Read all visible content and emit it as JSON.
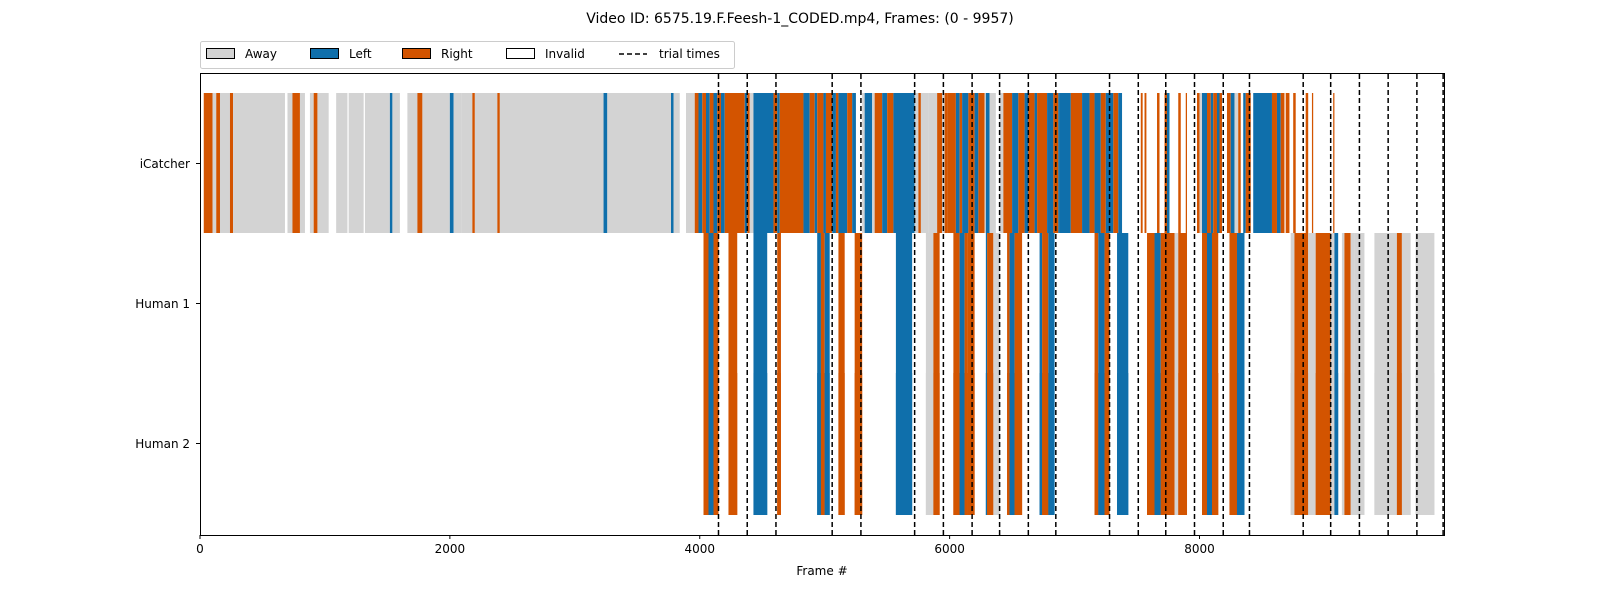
{
  "chart_data": {
    "type": "broken_barh",
    "title": "Video ID: 6575.19.F.Feesh-1_CODED.mp4, Frames: (0 - 9957)",
    "xlabel": "Frame #",
    "ylabel": "",
    "xlim": [
      0,
      9957
    ],
    "xticks": [
      0,
      2000,
      4000,
      6000,
      8000
    ],
    "rows": [
      "iCatcher",
      "Human 1",
      "Human 2"
    ],
    "legend": {
      "placement": "top-left, above plot",
      "entries": [
        {
          "label": "Away",
          "color": "#d3d3d3"
        },
        {
          "label": "Left",
          "color": "#0f6fab"
        },
        {
          "label": "Right",
          "color": "#d35400"
        },
        {
          "label": "Invalid",
          "color": "#ffffff"
        },
        {
          "label": "trial times",
          "style": "dashed"
        }
      ]
    },
    "colors": {
      "Away": "#d3d3d3",
      "Left": "#0f6fab",
      "Right": "#d35400"
    },
    "trial_times": [
      4150,
      4380,
      4610,
      5060,
      5290,
      5720,
      5950,
      6180,
      6400,
      6630,
      6850,
      7280,
      7510,
      7730,
      7960,
      8190,
      8400,
      8830,
      9050,
      9280,
      9510,
      9740,
      9950
    ],
    "segments": {
      "iCatcher": [
        [
          30,
          100,
          "Right"
        ],
        [
          100,
          130,
          "Away"
        ],
        [
          130,
          160,
          "Right"
        ],
        [
          160,
          240,
          "Away"
        ],
        [
          240,
          265,
          "Right"
        ],
        [
          265,
          680,
          "Away"
        ],
        [
          700,
          740,
          "Away"
        ],
        [
          740,
          800,
          "Right"
        ],
        [
          800,
          840,
          "Away"
        ],
        [
          880,
          910,
          "Away"
        ],
        [
          910,
          940,
          "Right"
        ],
        [
          940,
          1030,
          "Away"
        ],
        [
          1090,
          1180,
          "Away"
        ],
        [
          1190,
          1310,
          "Away"
        ],
        [
          1320,
          1520,
          "Away"
        ],
        [
          1520,
          1540,
          "Left"
        ],
        [
          1540,
          1600,
          "Away"
        ],
        [
          1660,
          1740,
          "Away"
        ],
        [
          1740,
          1780,
          "Right"
        ],
        [
          1780,
          2000,
          "Away"
        ],
        [
          2000,
          2030,
          "Left"
        ],
        [
          2030,
          2090,
          "Away"
        ],
        [
          2090,
          2180,
          "Away"
        ],
        [
          2180,
          2200,
          "Right"
        ],
        [
          2200,
          2380,
          "Away"
        ],
        [
          2380,
          2400,
          "Right"
        ],
        [
          2400,
          3230,
          "Away"
        ],
        [
          3230,
          3260,
          "Left"
        ],
        [
          3260,
          3770,
          "Away"
        ],
        [
          3770,
          3790,
          "Left"
        ],
        [
          3790,
          3840,
          "Away"
        ],
        [
          3890,
          3960,
          "Away"
        ],
        [
          3960,
          3990,
          "Right"
        ],
        [
          3990,
          4020,
          "Left"
        ],
        [
          4020,
          4050,
          "Right"
        ],
        [
          4050,
          4080,
          "Left"
        ],
        [
          4080,
          4110,
          "Right"
        ],
        [
          4110,
          4140,
          "Left"
        ],
        [
          4140,
          4170,
          "Right"
        ],
        [
          4170,
          4200,
          "Left"
        ],
        [
          4200,
          4360,
          "Right"
        ],
        [
          4360,
          4380,
          "Left"
        ],
        [
          4380,
          4400,
          "Right"
        ],
        [
          4400,
          4430,
          "Away"
        ],
        [
          4430,
          4590,
          "Left"
        ],
        [
          4590,
          4620,
          "Right"
        ],
        [
          4620,
          4640,
          "Left"
        ],
        [
          4640,
          4830,
          "Right"
        ],
        [
          4830,
          4880,
          "Left"
        ],
        [
          4880,
          4920,
          "Right"
        ],
        [
          4920,
          4940,
          "Left"
        ],
        [
          4940,
          4990,
          "Right"
        ],
        [
          4990,
          5010,
          "Left"
        ],
        [
          5010,
          5060,
          "Right"
        ],
        [
          5060,
          5090,
          "Left"
        ],
        [
          5090,
          5110,
          "Right"
        ],
        [
          5110,
          5180,
          "Left"
        ],
        [
          5180,
          5220,
          "Right"
        ],
        [
          5220,
          5250,
          "Left"
        ],
        [
          5300,
          5320,
          "Away"
        ],
        [
          5320,
          5380,
          "Left"
        ],
        [
          5380,
          5400,
          "Away"
        ],
        [
          5400,
          5460,
          "Right"
        ],
        [
          5460,
          5500,
          "Left"
        ],
        [
          5500,
          5550,
          "Right"
        ],
        [
          5550,
          5720,
          "Left"
        ],
        [
          5720,
          5750,
          "Away"
        ],
        [
          5750,
          5770,
          "Right"
        ],
        [
          5770,
          5830,
          "Away"
        ],
        [
          5830,
          5900,
          "Away"
        ],
        [
          5900,
          5940,
          "Right"
        ],
        [
          5940,
          5960,
          "Away"
        ],
        [
          5960,
          5980,
          "Right"
        ],
        [
          5980,
          6050,
          "Right"
        ],
        [
          6050,
          6080,
          "Left"
        ],
        [
          6080,
          6100,
          "Right"
        ],
        [
          6100,
          6150,
          "Left"
        ],
        [
          6150,
          6200,
          "Right"
        ],
        [
          6200,
          6230,
          "Left"
        ],
        [
          6230,
          6280,
          "Right"
        ],
        [
          6280,
          6290,
          "Away"
        ],
        [
          6290,
          6320,
          "Left"
        ],
        [
          6320,
          6370,
          "Away"
        ],
        [
          6400,
          6430,
          "Away"
        ],
        [
          6430,
          6500,
          "Right"
        ],
        [
          6500,
          6550,
          "Left"
        ],
        [
          6550,
          6600,
          "Right"
        ],
        [
          6600,
          6630,
          "Left"
        ],
        [
          6630,
          6680,
          "Right"
        ],
        [
          6680,
          6700,
          "Left"
        ],
        [
          6700,
          6780,
          "Right"
        ],
        [
          6780,
          6830,
          "Left"
        ],
        [
          6830,
          6870,
          "Right"
        ],
        [
          6870,
          6880,
          "Left"
        ],
        [
          6880,
          6970,
          "Left"
        ],
        [
          6970,
          7060,
          "Right"
        ],
        [
          7060,
          7120,
          "Left"
        ],
        [
          7120,
          7160,
          "Right"
        ],
        [
          7160,
          7210,
          "Left"
        ],
        [
          7210,
          7250,
          "Right"
        ],
        [
          7250,
          7310,
          "Left"
        ],
        [
          7310,
          7350,
          "Right"
        ],
        [
          7350,
          7380,
          "Left"
        ],
        [
          7530,
          7545,
          "Right"
        ],
        [
          7560,
          7575,
          "Right"
        ],
        [
          7660,
          7680,
          "Right"
        ],
        [
          7720,
          7740,
          "Right"
        ],
        [
          7740,
          7760,
          "Left"
        ],
        [
          7830,
          7850,
          "Right"
        ],
        [
          7890,
          7900,
          "Right"
        ],
        [
          7980,
          8000,
          "Right"
        ],
        [
          8000,
          8020,
          "Away"
        ],
        [
          8020,
          8060,
          "Left"
        ],
        [
          8060,
          8090,
          "Right"
        ],
        [
          8090,
          8110,
          "Left"
        ],
        [
          8110,
          8140,
          "Right"
        ],
        [
          8140,
          8160,
          "Left"
        ],
        [
          8160,
          8180,
          "Right"
        ],
        [
          8220,
          8250,
          "Right"
        ],
        [
          8250,
          8280,
          "Left"
        ],
        [
          8280,
          8310,
          "Away"
        ],
        [
          8310,
          8330,
          "Right"
        ],
        [
          8350,
          8370,
          "Left"
        ],
        [
          8370,
          8410,
          "Right"
        ],
        [
          8430,
          8580,
          "Left"
        ],
        [
          8580,
          8620,
          "Right"
        ],
        [
          8620,
          8650,
          "Left"
        ],
        [
          8650,
          8680,
          "Right"
        ],
        [
          8690,
          8720,
          "Right"
        ],
        [
          8750,
          8770,
          "Right"
        ],
        [
          8850,
          8870,
          "Right"
        ],
        [
          8900,
          8910,
          "Right"
        ],
        [
          9070,
          9080,
          "Right"
        ]
      ],
      "Human 1": [
        [
          4030,
          4070,
          "Right"
        ],
        [
          4070,
          4110,
          "Left"
        ],
        [
          4110,
          4150,
          "Right"
        ],
        [
          4230,
          4300,
          "Right"
        ],
        [
          4430,
          4540,
          "Left"
        ],
        [
          4620,
          4650,
          "Right"
        ],
        [
          4940,
          4970,
          "Left"
        ],
        [
          4970,
          5000,
          "Right"
        ],
        [
          5000,
          5040,
          "Left"
        ],
        [
          5110,
          5160,
          "Right"
        ],
        [
          5240,
          5300,
          "Right"
        ],
        [
          5570,
          5700,
          "Left"
        ],
        [
          5810,
          5870,
          "Away"
        ],
        [
          5870,
          5920,
          "Right"
        ],
        [
          6030,
          6080,
          "Right"
        ],
        [
          6080,
          6120,
          "Left"
        ],
        [
          6120,
          6140,
          "Right"
        ],
        [
          6140,
          6200,
          "Right"
        ],
        [
          6290,
          6300,
          "Left"
        ],
        [
          6300,
          6350,
          "Right"
        ],
        [
          6350,
          6400,
          "Away"
        ],
        [
          6460,
          6480,
          "Right"
        ],
        [
          6480,
          6520,
          "Left"
        ],
        [
          6520,
          6580,
          "Right"
        ],
        [
          6720,
          6740,
          "Left"
        ],
        [
          6740,
          6790,
          "Right"
        ],
        [
          6790,
          6840,
          "Left"
        ],
        [
          7160,
          7190,
          "Right"
        ],
        [
          7190,
          7240,
          "Left"
        ],
        [
          7240,
          7280,
          "Right"
        ],
        [
          7340,
          7430,
          "Left"
        ],
        [
          7580,
          7640,
          "Right"
        ],
        [
          7640,
          7690,
          "Left"
        ],
        [
          7690,
          7800,
          "Right"
        ],
        [
          7800,
          7830,
          "Away"
        ],
        [
          7830,
          7900,
          "Right"
        ],
        [
          8020,
          8060,
          "Right"
        ],
        [
          8060,
          8100,
          "Left"
        ],
        [
          8100,
          8150,
          "Right"
        ],
        [
          8240,
          8300,
          "Right"
        ],
        [
          8300,
          8360,
          "Left"
        ],
        [
          8730,
          8760,
          "Away"
        ],
        [
          8760,
          8870,
          "Right"
        ],
        [
          8870,
          8930,
          "Away"
        ],
        [
          8930,
          9050,
          "Right"
        ],
        [
          9050,
          9080,
          "Away"
        ],
        [
          9080,
          9110,
          "Left"
        ],
        [
          9140,
          9160,
          "Away"
        ],
        [
          9160,
          9210,
          "Right"
        ],
        [
          9210,
          9240,
          "Away"
        ],
        [
          9240,
          9320,
          "Away"
        ],
        [
          9400,
          9580,
          "Away"
        ],
        [
          9580,
          9620,
          "Right"
        ],
        [
          9620,
          9690,
          "Away"
        ],
        [
          9730,
          9880,
          "Away"
        ]
      ],
      "Human 2": [
        [
          4030,
          4070,
          "Right"
        ],
        [
          4070,
          4110,
          "Left"
        ],
        [
          4110,
          4150,
          "Right"
        ],
        [
          4230,
          4300,
          "Right"
        ],
        [
          4430,
          4540,
          "Left"
        ],
        [
          4620,
          4650,
          "Right"
        ],
        [
          4940,
          4970,
          "Left"
        ],
        [
          4970,
          5000,
          "Right"
        ],
        [
          5000,
          5040,
          "Left"
        ],
        [
          5110,
          5160,
          "Right"
        ],
        [
          5240,
          5300,
          "Right"
        ],
        [
          5570,
          5700,
          "Left"
        ],
        [
          5810,
          5870,
          "Away"
        ],
        [
          5870,
          5920,
          "Right"
        ],
        [
          6030,
          6080,
          "Right"
        ],
        [
          6080,
          6120,
          "Left"
        ],
        [
          6120,
          6140,
          "Right"
        ],
        [
          6140,
          6200,
          "Right"
        ],
        [
          6290,
          6300,
          "Left"
        ],
        [
          6300,
          6350,
          "Right"
        ],
        [
          6350,
          6400,
          "Away"
        ],
        [
          6460,
          6480,
          "Right"
        ],
        [
          6480,
          6520,
          "Left"
        ],
        [
          6520,
          6580,
          "Right"
        ],
        [
          6720,
          6740,
          "Left"
        ],
        [
          6740,
          6790,
          "Right"
        ],
        [
          6790,
          6840,
          "Left"
        ],
        [
          7160,
          7190,
          "Right"
        ],
        [
          7190,
          7240,
          "Left"
        ],
        [
          7240,
          7280,
          "Right"
        ],
        [
          7340,
          7430,
          "Left"
        ],
        [
          7580,
          7640,
          "Right"
        ],
        [
          7640,
          7690,
          "Left"
        ],
        [
          7690,
          7800,
          "Right"
        ],
        [
          7800,
          7830,
          "Away"
        ],
        [
          7830,
          7900,
          "Right"
        ],
        [
          8020,
          8060,
          "Right"
        ],
        [
          8060,
          8100,
          "Left"
        ],
        [
          8100,
          8150,
          "Right"
        ],
        [
          8240,
          8300,
          "Right"
        ],
        [
          8300,
          8360,
          "Left"
        ],
        [
          8730,
          8760,
          "Away"
        ],
        [
          8760,
          8870,
          "Right"
        ],
        [
          8870,
          8930,
          "Away"
        ],
        [
          8930,
          9050,
          "Right"
        ],
        [
          9050,
          9080,
          "Away"
        ],
        [
          9080,
          9110,
          "Left"
        ],
        [
          9140,
          9160,
          "Away"
        ],
        [
          9160,
          9210,
          "Right"
        ],
        [
          9210,
          9240,
          "Away"
        ],
        [
          9240,
          9320,
          "Away"
        ],
        [
          9400,
          9580,
          "Away"
        ],
        [
          9580,
          9620,
          "Right"
        ],
        [
          9620,
          9690,
          "Away"
        ],
        [
          9730,
          9880,
          "Away"
        ]
      ]
    }
  }
}
